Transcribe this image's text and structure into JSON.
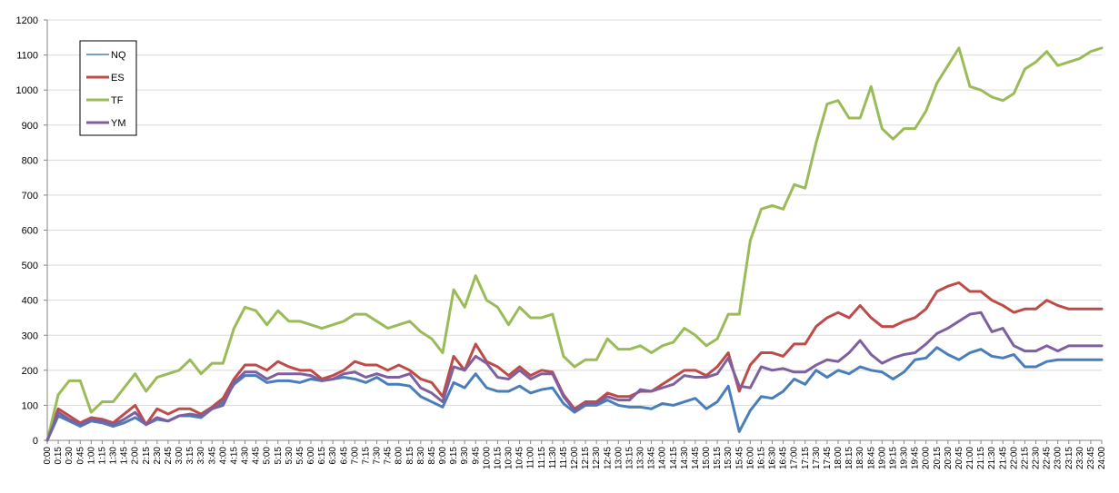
{
  "chart_data": {
    "type": "line",
    "title": "",
    "xlabel": "",
    "ylabel": "",
    "ylim": [
      0,
      1200
    ],
    "yticks": [
      0,
      100,
      200,
      300,
      400,
      500,
      600,
      700,
      800,
      900,
      1000,
      1100,
      1200
    ],
    "grid": "horizontal",
    "legend_position": "top-left",
    "categories": [
      "0:00",
      "0:15",
      "0:30",
      "0:45",
      "1:00",
      "1:15",
      "1:30",
      "1:45",
      "2:00",
      "2:15",
      "2:30",
      "2:45",
      "3:00",
      "3:15",
      "3:30",
      "3:45",
      "4:00",
      "4:15",
      "4:30",
      "4:45",
      "5:00",
      "5:15",
      "5:30",
      "5:45",
      "6:00",
      "6:15",
      "6:30",
      "6:45",
      "7:00",
      "7:15",
      "7:30",
      "7:45",
      "8:00",
      "8:15",
      "8:30",
      "8:45",
      "9:00",
      "9:15",
      "9:30",
      "9:45",
      "10:00",
      "10:15",
      "10:30",
      "10:45",
      "11:00",
      "11:15",
      "11:30",
      "11:45",
      "12:00",
      "12:15",
      "12:30",
      "12:45",
      "13:00",
      "13:15",
      "13:30",
      "13:45",
      "14:00",
      "14:15",
      "14:30",
      "14:45",
      "15:00",
      "15:15",
      "15:30",
      "15:45",
      "16:00",
      "16:15",
      "16:30",
      "16:45",
      "17:00",
      "17:15",
      "17:30",
      "17:45",
      "18:00",
      "18:15",
      "18:30",
      "18:45",
      "19:00",
      "19:15",
      "19:30",
      "19:45",
      "20:00",
      "20:15",
      "20:30",
      "20:45",
      "21:00",
      "21:15",
      "21:30",
      "21:45",
      "22:00",
      "22:15",
      "22:30",
      "22:45",
      "23:00",
      "23:15",
      "23:30",
      "23:45",
      "24:00"
    ],
    "series": [
      {
        "name": "NQ",
        "color": "#4a7ebb",
        "values": [
          0,
          70,
          55,
          40,
          55,
          50,
          40,
          50,
          65,
          45,
          60,
          55,
          70,
          70,
          65,
          90,
          110,
          160,
          185,
          185,
          165,
          170,
          170,
          165,
          175,
          170,
          175,
          180,
          175,
          165,
          180,
          160,
          160,
          155,
          125,
          110,
          95,
          165,
          150,
          190,
          150,
          140,
          140,
          155,
          135,
          145,
          150,
          105,
          80,
          100,
          100,
          115,
          100,
          95,
          95,
          90,
          105,
          100,
          110,
          120,
          90,
          110,
          155,
          25,
          85,
          125,
          120,
          140,
          175,
          160,
          200,
          180,
          200,
          190,
          210,
          200,
          195,
          175,
          195,
          230,
          235,
          265,
          245,
          230,
          250,
          260,
          240,
          235,
          245,
          210,
          210,
          225,
          230,
          230,
          230,
          230,
          230
        ]
      },
      {
        "name": "ES",
        "color": "#be4b48",
        "values": [
          0,
          90,
          70,
          50,
          65,
          60,
          50,
          75,
          100,
          45,
          90,
          75,
          90,
          90,
          75,
          95,
          120,
          175,
          215,
          215,
          200,
          225,
          210,
          200,
          200,
          175,
          185,
          200,
          225,
          215,
          215,
          200,
          215,
          200,
          175,
          165,
          125,
          240,
          200,
          275,
          225,
          210,
          185,
          210,
          185,
          200,
          195,
          130,
          90,
          110,
          110,
          135,
          125,
          125,
          140,
          140,
          160,
          180,
          200,
          200,
          185,
          210,
          250,
          140,
          215,
          250,
          250,
          240,
          275,
          275,
          325,
          350,
          365,
          350,
          385,
          350,
          325,
          325,
          340,
          350,
          375,
          425,
          440,
          450,
          425,
          425,
          400,
          385,
          365,
          375,
          375,
          400,
          385,
          375,
          375,
          375,
          375
        ]
      },
      {
        "name": "TF",
        "color": "#9bbb59",
        "values": [
          0,
          130,
          170,
          170,
          80,
          110,
          110,
          150,
          190,
          140,
          180,
          190,
          200,
          230,
          190,
          220,
          220,
          320,
          380,
          370,
          330,
          370,
          340,
          340,
          330,
          320,
          330,
          340,
          360,
          360,
          340,
          320,
          330,
          340,
          310,
          290,
          250,
          430,
          380,
          470,
          400,
          380,
          330,
          380,
          350,
          350,
          360,
          240,
          210,
          230,
          230,
          290,
          260,
          260,
          270,
          250,
          270,
          280,
          320,
          300,
          270,
          290,
          360,
          360,
          570,
          660,
          670,
          660,
          730,
          720,
          850,
          960,
          970,
          920,
          920,
          1010,
          890,
          860,
          890,
          890,
          940,
          1020,
          1070,
          1120,
          1010,
          1000,
          980,
          970,
          990,
          1060,
          1080,
          1110,
          1070,
          1080,
          1090,
          1110,
          1120
        ]
      },
      {
        "name": "YM",
        "color": "#7d60a0",
        "values": [
          0,
          80,
          60,
          45,
          60,
          55,
          45,
          60,
          80,
          45,
          65,
          55,
          70,
          75,
          70,
          90,
          100,
          165,
          195,
          195,
          175,
          190,
          190,
          190,
          185,
          170,
          175,
          190,
          195,
          180,
          190,
          180,
          180,
          190,
          150,
          135,
          110,
          210,
          200,
          240,
          220,
          180,
          175,
          200,
          175,
          190,
          190,
          125,
          85,
          105,
          105,
          125,
          115,
          115,
          145,
          140,
          150,
          160,
          185,
          180,
          180,
          190,
          235,
          155,
          150,
          210,
          200,
          205,
          195,
          195,
          215,
          230,
          225,
          250,
          285,
          245,
          220,
          235,
          245,
          250,
          275,
          305,
          320,
          340,
          360,
          365,
          310,
          320,
          270,
          255,
          255,
          270,
          255,
          270,
          270,
          270,
          270
        ]
      }
    ]
  }
}
